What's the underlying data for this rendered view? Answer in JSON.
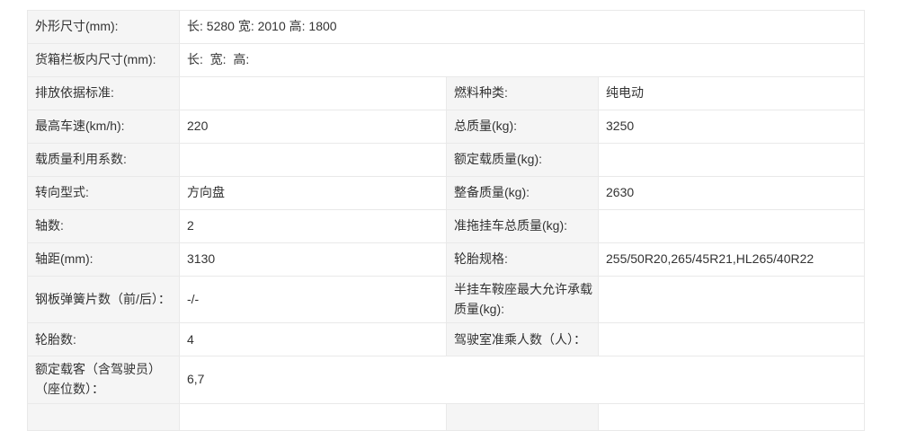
{
  "colors": {
    "label_bg": "#f5f5f5",
    "cell_bg": "#ffffff",
    "border": "#e9e9e9",
    "text": "#333333",
    "page_bg": "#ffffff"
  },
  "spec_table": {
    "rows": [
      {
        "type": "span",
        "label": "外形尺寸(mm):",
        "value": "长: 5280 宽: 2010 高: 1800"
      },
      {
        "type": "span",
        "label": "货箱栏板内尺寸(mm):",
        "value": "长:  宽:  高:"
      },
      {
        "type": "four",
        "label1": "排放依据标准:",
        "value1": "",
        "label2": "燃料种类:",
        "value2": "纯电动"
      },
      {
        "type": "four",
        "label1": "最高车速(km/h):",
        "value1": "220",
        "label2": "总质量(kg):",
        "value2": "3250"
      },
      {
        "type": "four",
        "label1": "载质量利用系数:",
        "value1": "",
        "label2": "额定载质量(kg):",
        "value2": ""
      },
      {
        "type": "four",
        "label1": "转向型式:",
        "value1": "方向盘",
        "label2": "整备质量(kg):",
        "value2": "2630"
      },
      {
        "type": "four",
        "label1": "轴数:",
        "value1": "2",
        "label2": "准拖挂车总质量(kg):",
        "value2": ""
      },
      {
        "type": "four",
        "label1": "轴距(mm):",
        "value1": "3130",
        "label2": "轮胎规格:",
        "value2": "255/50R20,265/45R21,HL265/40R22"
      },
      {
        "type": "four",
        "label1": "钢板弹簧片数（前/后）：",
        "value1": "-/-",
        "label2": "半挂车鞍座最大允许承载质量(kg):",
        "value2": ""
      },
      {
        "type": "four",
        "label1": "轮胎数:",
        "value1": "4",
        "label2": "驾驶室准乘人数（人）：",
        "value2": ""
      },
      {
        "type": "span",
        "label": "额定载客（含驾驶员）（座位数）：",
        "value": "6,7"
      },
      {
        "type": "four",
        "label1": "",
        "value1": "",
        "label2": "",
        "value2": ""
      }
    ]
  }
}
